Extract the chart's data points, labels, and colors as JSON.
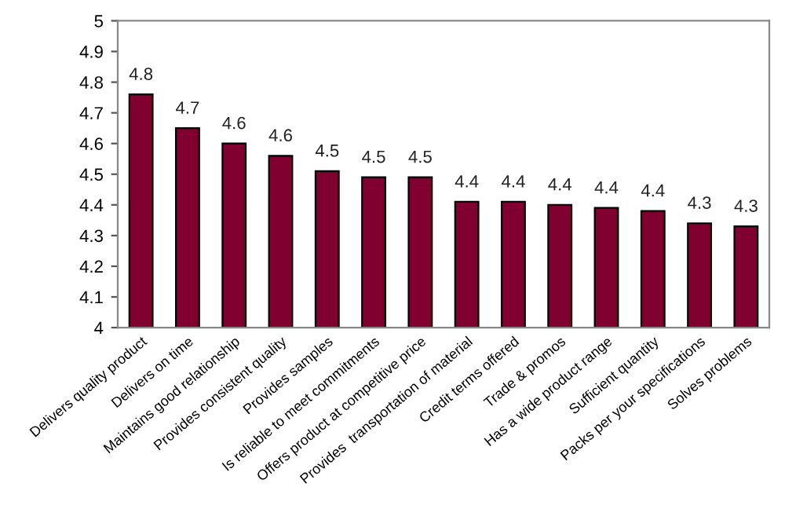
{
  "chart_data": {
    "type": "bar",
    "categories": [
      "Delivers quality product",
      "Delivers on time",
      "Maintains good relationship",
      "Provides consistent quality",
      "Provides samples",
      "Is reliable to meet commitments",
      "Offers product at competitive price",
      "Provides  transportation of material",
      "Credit terms offered",
      "Trade & promos",
      "Has a wide product range",
      "Sufficient quantity",
      "Packs per your specifications",
      "Solves problems"
    ],
    "values": [
      4.76,
      4.65,
      4.6,
      4.56,
      4.51,
      4.49,
      4.49,
      4.41,
      4.41,
      4.4,
      4.39,
      4.38,
      4.34,
      4.33
    ],
    "value_labels": [
      "4.8",
      "4.7",
      "4.6",
      "4.6",
      "4.5",
      "4.5",
      "4.5",
      "4.4",
      "4.4",
      "4.4",
      "4.4",
      "4.4",
      "4.3",
      "4.3"
    ],
    "color": "#800030",
    "ylim": [
      4,
      5
    ],
    "yticks": [
      4,
      {
        "value": 4.1,
        "label": "4.1"
      },
      {
        "value": 4.2,
        "label": "4.2"
      },
      {
        "value": 4.3,
        "label": "4.3"
      },
      {
        "value": 4.4,
        "label": "4.4"
      },
      {
        "value": 4.5,
        "label": "4.5"
      },
      {
        "value": 4.6,
        "label": "4.6"
      },
      {
        "value": 4.7,
        "label": "4.7"
      },
      {
        "value": 4.8,
        "label": "4.8"
      },
      {
        "value": 4.9,
        "label": "4.9"
      },
      5
    ],
    "grid": false,
    "legend": false
  }
}
